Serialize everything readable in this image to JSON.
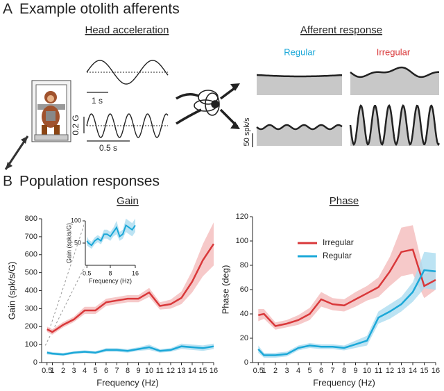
{
  "panel_a": {
    "letter": "A",
    "title": "Example otolith afferents",
    "head_title": "Head acceleration",
    "scale_time_top": "1 s",
    "scale_accel": "0.2 G",
    "scale_time_bottom": "0.5 s",
    "response_title": "Afferent response",
    "regular": "Regular",
    "irregular": "Irregular",
    "scale_rate": "50 spk/s"
  },
  "panel_b": {
    "letter": "B",
    "title": "Population responses"
  },
  "chart_data": [
    {
      "type": "line",
      "title": "Gain",
      "xlabel": "Frequency (Hz)",
      "ylabel": "Gain (spk/s/G)",
      "x": [
        0.5,
        1,
        2,
        3,
        4,
        5,
        6,
        7,
        8,
        9,
        10,
        11,
        12,
        13,
        14,
        15,
        16
      ],
      "xlim": [
        0,
        16
      ],
      "ylim": [
        0,
        800
      ],
      "xticks": [
        0.5,
        1,
        2,
        3,
        4,
        5,
        6,
        7,
        8,
        9,
        10,
        11,
        12,
        13,
        14,
        15,
        16
      ],
      "yticks": [
        0,
        100,
        200,
        300,
        400,
        500,
        600,
        700,
        800
      ],
      "series": [
        {
          "color": "#d9383a",
          "band_color": "#f4bcbc",
          "values": [
            185,
            170,
            210,
            240,
            290,
            290,
            335,
            345,
            355,
            355,
            390,
            315,
            325,
            360,
            450,
            570,
            660
          ],
          "error": [
            15,
            15,
            15,
            15,
            20,
            20,
            20,
            20,
            20,
            20,
            25,
            20,
            25,
            35,
            60,
            90,
            120
          ]
        },
        {
          "color": "#1ba8d8",
          "band_color": "#abdcf0",
          "values": [
            55,
            50,
            45,
            55,
            60,
            55,
            70,
            70,
            65,
            75,
            85,
            65,
            70,
            90,
            85,
            80,
            90
          ],
          "error": [
            10,
            8,
            8,
            8,
            8,
            8,
            10,
            10,
            10,
            10,
            15,
            10,
            10,
            15,
            15,
            15,
            15
          ]
        }
      ]
    },
    {
      "type": "line",
      "xlabel": "Frequency (Hz)",
      "ylabel": "Gain (spk/s/G)",
      "x": [
        0.5,
        1,
        2,
        3,
        4,
        5,
        6,
        7,
        8,
        9,
        10,
        11,
        12,
        13,
        14,
        15,
        16
      ],
      "xlim": [
        0,
        16
      ],
      "ylim": [
        0,
        100
      ],
      "xticks": [
        0.5,
        8,
        16
      ],
      "yticks": [
        50,
        100
      ],
      "series": [
        {
          "color": "#1ba8d8",
          "band_color": "#abdcf0",
          "values": [
            55,
            50,
            45,
            55,
            60,
            55,
            70,
            70,
            65,
            75,
            85,
            65,
            70,
            90,
            85,
            80,
            90
          ],
          "error": [
            10,
            8,
            8,
            8,
            8,
            8,
            10,
            10,
            10,
            10,
            15,
            10,
            10,
            15,
            15,
            15,
            15
          ]
        }
      ]
    },
    {
      "type": "line",
      "title": "Phase",
      "xlabel": "Frequency (Hz)",
      "ylabel": "Phase (deg)",
      "x": [
        0.5,
        1,
        2,
        3,
        4,
        5,
        6,
        7,
        8,
        9,
        10,
        11,
        12,
        13,
        14,
        15,
        16
      ],
      "xlim": [
        0,
        16
      ],
      "ylim": [
        0,
        120
      ],
      "xticks": [
        0.5,
        1,
        2,
        3,
        4,
        5,
        6,
        7,
        8,
        9,
        10,
        11,
        12,
        13,
        14,
        15,
        16
      ],
      "yticks": [
        0,
        20,
        40,
        60,
        80,
        100,
        120
      ],
      "legend": "upper left",
      "series": [
        {
          "name": "Irregular",
          "color": "#d9383a",
          "band_color": "#f4bcbc",
          "values": [
            39,
            40,
            30,
            32,
            35,
            40,
            52,
            48,
            47,
            52,
            57,
            62,
            75,
            91,
            93,
            63,
            68
          ],
          "error": [
            5,
            4,
            3,
            3,
            4,
            5,
            6,
            5,
            5,
            6,
            6,
            8,
            12,
            20,
            20,
            10,
            8
          ]
        },
        {
          "name": "Regular",
          "color": "#1ba8d8",
          "band_color": "#abdcf0",
          "values": [
            11,
            6,
            6,
            7,
            12,
            14,
            13,
            13,
            12,
            15,
            18,
            37,
            42,
            48,
            58,
            76,
            75
          ],
          "error": [
            3,
            2,
            2,
            2,
            2,
            2,
            2,
            2,
            2,
            3,
            4,
            5,
            6,
            6,
            8,
            15,
            15
          ]
        }
      ]
    }
  ]
}
